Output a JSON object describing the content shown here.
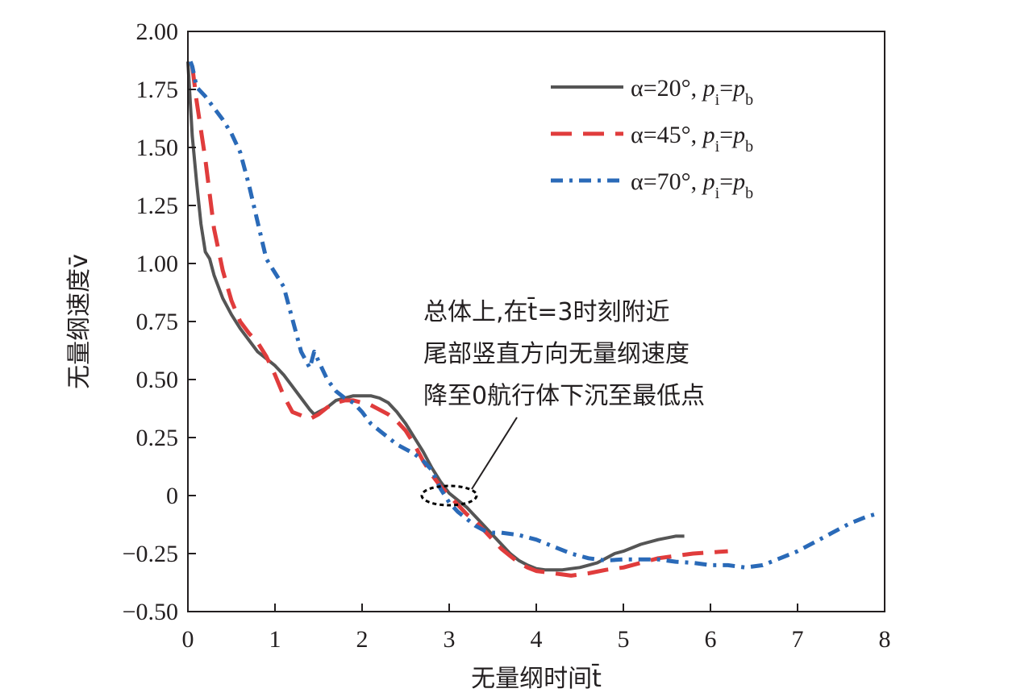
{
  "chart_data": {
    "type": "line",
    "xlabel": "无量纲时间t̄",
    "ylabel": "无量纲速度v̄",
    "xlim": [
      0,
      8
    ],
    "ylim": [
      -0.5,
      2.0
    ],
    "x_ticks": [
      0,
      1,
      2,
      3,
      4,
      5,
      6,
      7,
      8
    ],
    "y_ticks": [
      -0.5,
      -0.25,
      0,
      0.25,
      0.5,
      0.75,
      1.0,
      1.25,
      1.5,
      1.75,
      2.0
    ],
    "x_tick_labels": [
      "0",
      "1",
      "2",
      "3",
      "4",
      "5",
      "6",
      "7",
      "8"
    ],
    "y_tick_labels": [
      "−0.50",
      "−0.25",
      "0",
      "0.25",
      "0.50",
      "0.75",
      "1.00",
      "1.25",
      "1.50",
      "1.75",
      "2.00"
    ],
    "grid": false,
    "legend_position": "top-right",
    "series": [
      {
        "name": "α=20°, pi=pb",
        "legend_label": {
          "prefix": "α=20°, ",
          "p1": "p",
          "s1": "i",
          "eq": "=",
          "p2": "p",
          "s2": "b"
        },
        "color": "#555555",
        "style": "solid",
        "x": [
          0.0,
          0.05,
          0.1,
          0.15,
          0.2,
          0.25,
          0.3,
          0.4,
          0.5,
          0.6,
          0.7,
          0.8,
          0.9,
          1.0,
          1.1,
          1.2,
          1.3,
          1.4,
          1.45,
          1.5,
          1.6,
          1.7,
          1.8,
          1.9,
          2.0,
          2.1,
          2.2,
          2.3,
          2.4,
          2.5,
          2.6,
          2.7,
          2.8,
          2.9,
          3.0,
          3.1,
          3.2,
          3.3,
          3.4,
          3.5,
          3.6,
          3.7,
          3.8,
          3.9,
          4.0,
          4.1,
          4.2,
          4.3,
          4.4,
          4.5,
          4.6,
          4.7,
          4.8,
          4.9,
          5.0,
          5.2,
          5.4,
          5.6,
          5.7
        ],
        "y": [
          1.87,
          1.55,
          1.35,
          1.17,
          1.05,
          1.02,
          0.95,
          0.85,
          0.78,
          0.72,
          0.67,
          0.62,
          0.59,
          0.56,
          0.52,
          0.47,
          0.42,
          0.37,
          0.35,
          0.36,
          0.38,
          0.41,
          0.42,
          0.43,
          0.43,
          0.43,
          0.42,
          0.4,
          0.36,
          0.31,
          0.25,
          0.19,
          0.12,
          0.06,
          0.01,
          -0.02,
          -0.05,
          -0.09,
          -0.13,
          -0.17,
          -0.21,
          -0.25,
          -0.28,
          -0.3,
          -0.315,
          -0.32,
          -0.32,
          -0.32,
          -0.315,
          -0.31,
          -0.3,
          -0.29,
          -0.27,
          -0.25,
          -0.24,
          -0.21,
          -0.19,
          -0.175,
          -0.175
        ]
      },
      {
        "name": "α=45°, pi=pb",
        "legend_label": {
          "prefix": "α=45°, ",
          "p1": "p",
          "s1": "i",
          "eq": "=",
          "p2": "p",
          "s2": "b"
        },
        "color": "#e03c3c",
        "style": "dashed",
        "x": [
          0.05,
          0.1,
          0.2,
          0.3,
          0.4,
          0.5,
          0.6,
          0.7,
          0.8,
          0.9,
          1.0,
          1.1,
          1.2,
          1.3,
          1.4,
          1.5,
          1.6,
          1.7,
          1.8,
          1.9,
          2.0,
          2.1,
          2.2,
          2.3,
          2.4,
          2.5,
          2.6,
          2.7,
          2.8,
          2.9,
          3.0,
          3.1,
          3.2,
          3.3,
          3.4,
          3.5,
          3.6,
          3.7,
          3.8,
          3.9,
          4.0,
          4.1,
          4.2,
          4.3,
          4.4,
          4.5,
          4.6,
          4.8,
          5.0,
          5.2,
          5.4,
          5.6,
          5.8,
          6.0,
          6.2
        ],
        "y": [
          1.85,
          1.7,
          1.45,
          1.15,
          0.97,
          0.84,
          0.75,
          0.7,
          0.66,
          0.6,
          0.52,
          0.43,
          0.36,
          0.345,
          0.33,
          0.35,
          0.38,
          0.4,
          0.41,
          0.41,
          0.4,
          0.39,
          0.37,
          0.35,
          0.32,
          0.28,
          0.22,
          0.15,
          0.09,
          0.04,
          0.0,
          -0.04,
          -0.08,
          -0.11,
          -0.15,
          -0.19,
          -0.23,
          -0.26,
          -0.29,
          -0.31,
          -0.325,
          -0.33,
          -0.335,
          -0.34,
          -0.345,
          -0.34,
          -0.335,
          -0.32,
          -0.31,
          -0.29,
          -0.27,
          -0.26,
          -0.25,
          -0.245,
          -0.24
        ]
      },
      {
        "name": "α=70°, pi=pb",
        "legend_label": {
          "prefix": "α=70°, ",
          "p1": "p",
          "s1": "i",
          "eq": "=",
          "p2": "p",
          "s2": "b"
        },
        "color": "#2a6ab8",
        "style": "dash-dot",
        "x": [
          0.03,
          0.05,
          0.1,
          0.2,
          0.3,
          0.4,
          0.5,
          0.6,
          0.7,
          0.8,
          0.9,
          1.0,
          1.1,
          1.2,
          1.3,
          1.4,
          1.45,
          1.5,
          1.6,
          1.7,
          1.8,
          1.9,
          2.0,
          2.1,
          2.2,
          2.3,
          2.4,
          2.5,
          2.6,
          2.7,
          2.8,
          2.9,
          3.0,
          3.1,
          3.2,
          3.3,
          3.4,
          3.5,
          3.6,
          3.8,
          4.0,
          4.2,
          4.4,
          4.6,
          4.8,
          5.0,
          5.2,
          5.4,
          5.6,
          5.8,
          6.0,
          6.2,
          6.4,
          6.6,
          6.8,
          7.0,
          7.2,
          7.4,
          7.6,
          7.8,
          7.9
        ],
        "y": [
          1.87,
          1.85,
          1.76,
          1.72,
          1.67,
          1.62,
          1.56,
          1.48,
          1.34,
          1.18,
          1.02,
          0.96,
          0.9,
          0.76,
          0.62,
          0.55,
          0.62,
          0.58,
          0.5,
          0.45,
          0.42,
          0.4,
          0.36,
          0.31,
          0.28,
          0.25,
          0.22,
          0.2,
          0.18,
          0.15,
          0.11,
          0.03,
          -0.03,
          -0.07,
          -0.1,
          -0.13,
          -0.15,
          -0.16,
          -0.16,
          -0.17,
          -0.19,
          -0.22,
          -0.25,
          -0.27,
          -0.28,
          -0.275,
          -0.275,
          -0.275,
          -0.285,
          -0.29,
          -0.3,
          -0.3,
          -0.31,
          -0.3,
          -0.27,
          -0.24,
          -0.2,
          -0.16,
          -0.12,
          -0.09,
          -0.08
        ]
      }
    ],
    "annotation": {
      "lines": [
        "总体上,在t̄=3时刻附近",
        "尾部竖直方向无量纲速度",
        "降至0航行体下沉至最低点"
      ],
      "ellipse_center": [
        3.0,
        0.0
      ]
    }
  }
}
